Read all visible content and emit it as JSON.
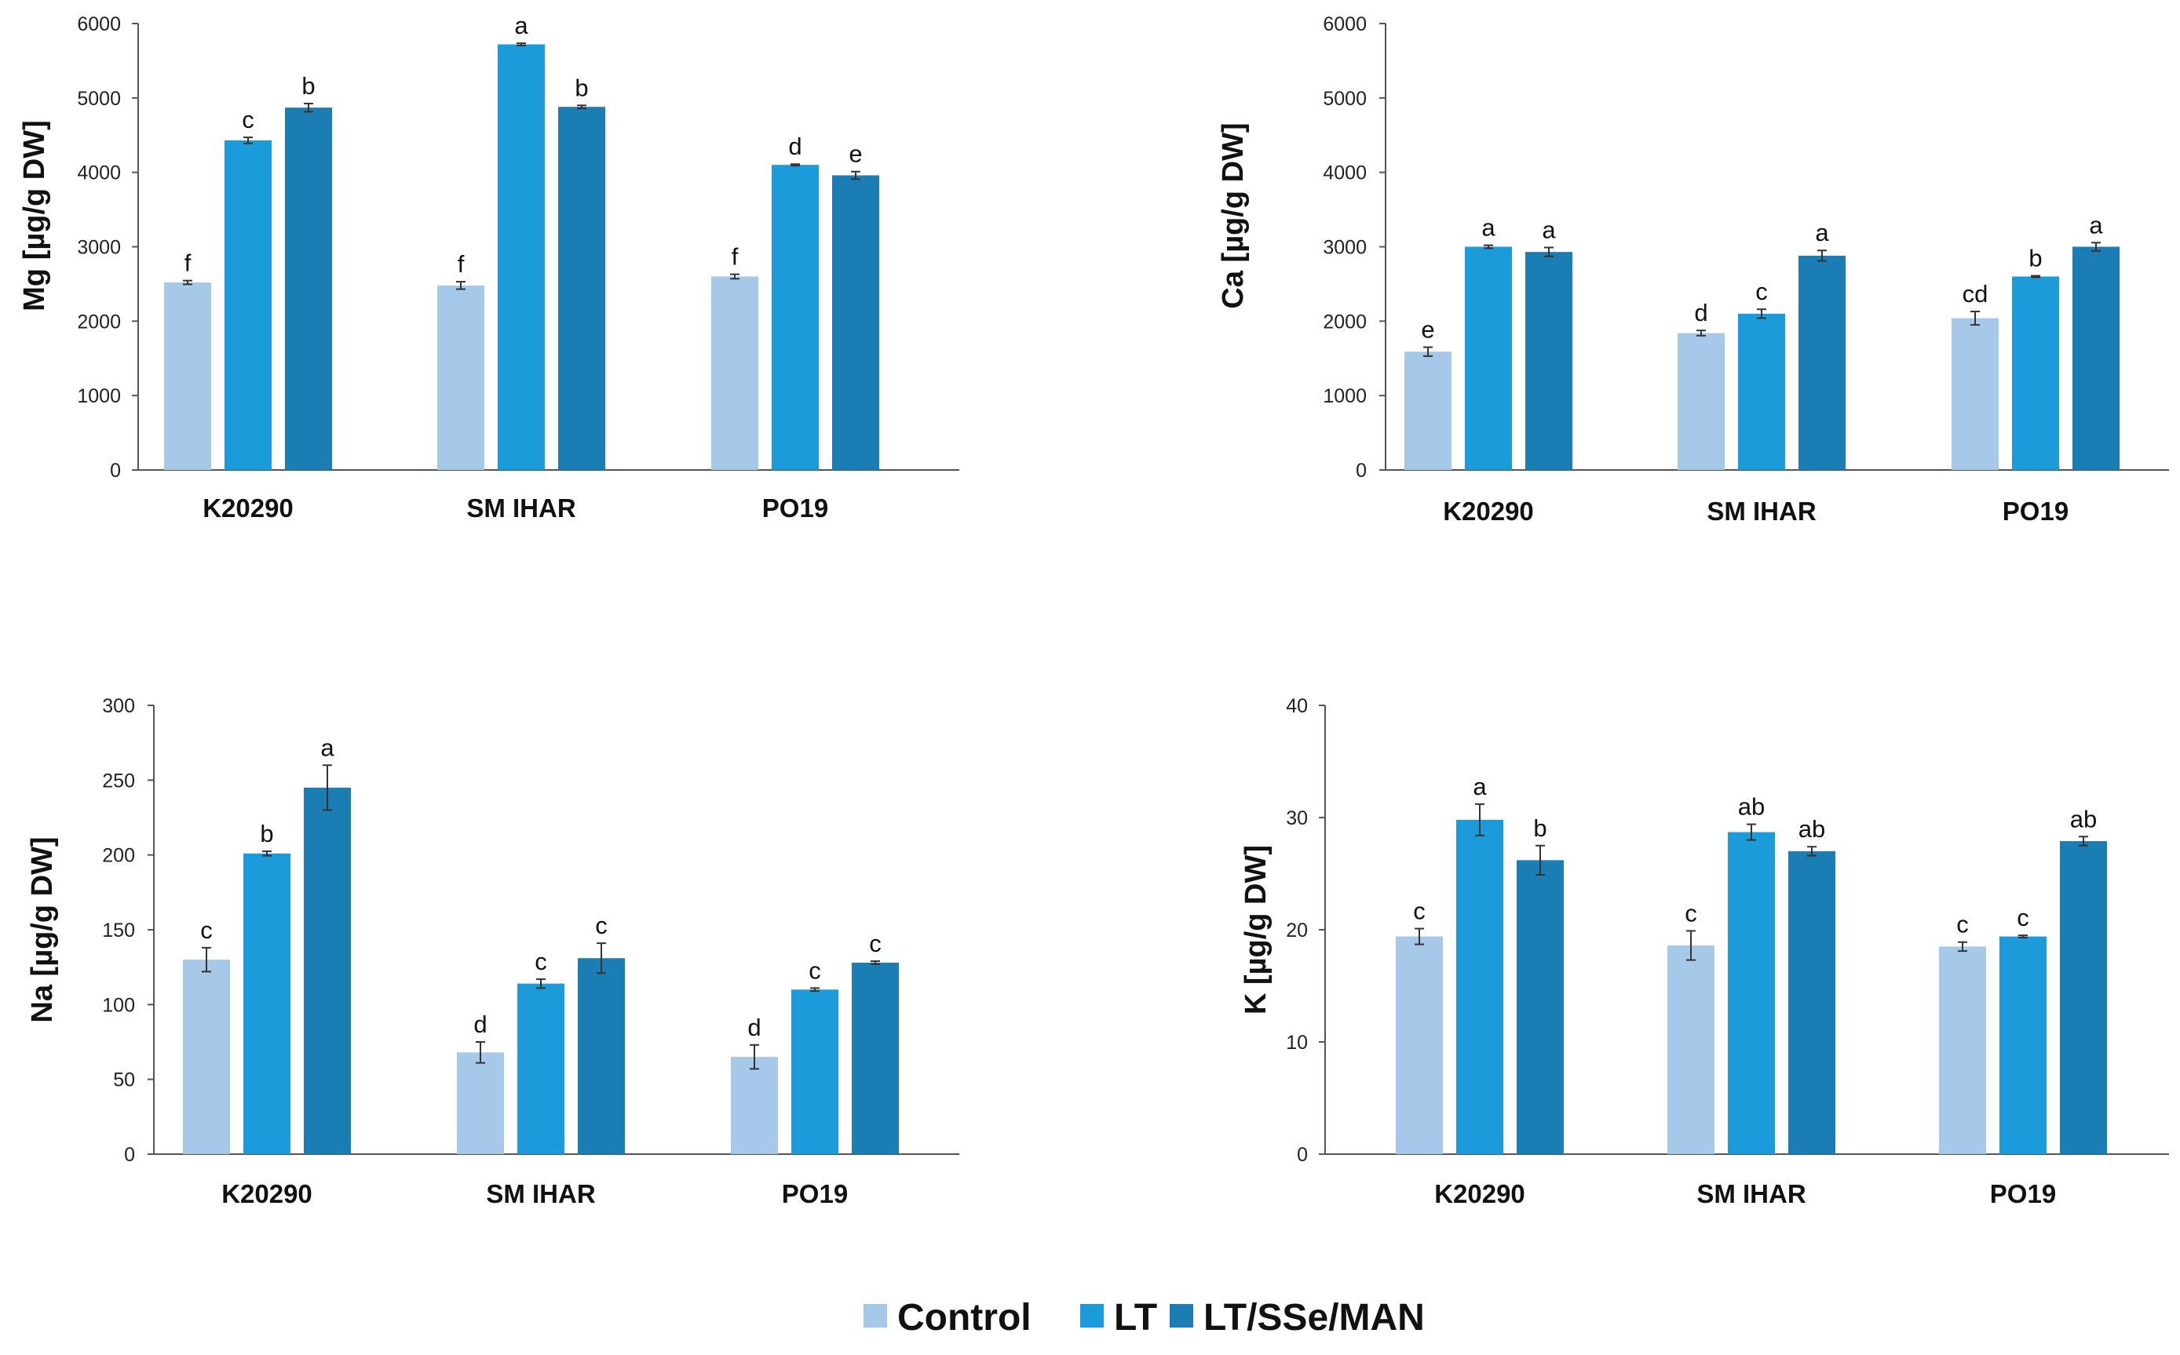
{
  "colors": {
    "Control": "#a6c8e9",
    "LT": "#1b9bd9",
    "LT/SSe/MAN": "#1a7db4",
    "axis": "#555555",
    "error": "#333333"
  },
  "legend": {
    "items": [
      "Control",
      "LT",
      "LT/SSe/MAN"
    ],
    "placement": "bottom-center"
  },
  "chart_data": [
    {
      "type": "bar",
      "ylabel": "Mg [µg/g DW]",
      "categories": [
        "K20290",
        "SM IHAR",
        "PO19"
      ],
      "ylim": [
        0,
        6000
      ],
      "yticks": [
        0,
        1000,
        2000,
        3000,
        4000,
        5000,
        6000
      ],
      "tick_labels": [
        "0",
        "1000",
        "2000",
        "3000",
        "4000",
        "5000",
        "6000"
      ],
      "series": [
        {
          "name": "Control",
          "values": [
            2520,
            2480,
            2600
          ],
          "errors": [
            25,
            50,
            30
          ],
          "letters": [
            "f",
            "f",
            "f"
          ]
        },
        {
          "name": "LT",
          "values": [
            4430,
            5720,
            4100
          ],
          "errors": [
            40,
            15,
            10
          ],
          "letters": [
            "c",
            "a",
            "d"
          ]
        },
        {
          "name": "LT/SSe/MAN",
          "values": [
            4870,
            4880,
            3960
          ],
          "errors": [
            55,
            20,
            50
          ],
          "letters": [
            "b",
            "b",
            "e"
          ]
        }
      ]
    },
    {
      "type": "bar",
      "ylabel": "Ca [µg/g DW]",
      "categories": [
        "K20290",
        "SM IHAR",
        "PO19"
      ],
      "ylim": [
        0,
        6000
      ],
      "yticks": [
        0,
        1000,
        2000,
        3000,
        4000,
        5000,
        6000
      ],
      "tick_labels": [
        "0",
        "1000",
        "2000",
        "3000",
        "4000",
        "5000",
        "6000"
      ],
      "series": [
        {
          "name": "Control",
          "values": [
            1590,
            1840,
            2040
          ],
          "errors": [
            60,
            35,
            90
          ],
          "letters": [
            "e",
            "d",
            "cd"
          ]
        },
        {
          "name": "LT",
          "values": [
            3000,
            2100,
            2600
          ],
          "errors": [
            20,
            60,
            10
          ],
          "letters": [
            "a",
            "c",
            "b"
          ]
        },
        {
          "name": "LT/SSe/MAN",
          "values": [
            2930,
            2880,
            3000
          ],
          "errors": [
            60,
            70,
            55
          ],
          "letters": [
            "a",
            "a",
            "a"
          ]
        }
      ]
    },
    {
      "type": "bar",
      "ylabel": "Na [µg/g DW]",
      "categories": [
        "K20290",
        "SM IHAR",
        "PO19"
      ],
      "ylim": [
        0,
        300
      ],
      "yticks": [
        0,
        50,
        100,
        150,
        200,
        250,
        300
      ],
      "tick_labels": [
        "0",
        "50",
        "100",
        "150",
        "200",
        "250",
        "300"
      ],
      "series": [
        {
          "name": "Control",
          "values": [
            130,
            68,
            65
          ],
          "errors": [
            8,
            7,
            8
          ],
          "letters": [
            "c",
            "d",
            "d"
          ]
        },
        {
          "name": "LT",
          "values": [
            201,
            114,
            110
          ],
          "errors": [
            1.5,
            3,
            1
          ],
          "letters": [
            "b",
            "c",
            "c"
          ]
        },
        {
          "name": "LT/SSe/MAN",
          "values": [
            245,
            131,
            128
          ],
          "errors": [
            15,
            10,
            1
          ],
          "letters": [
            "a",
            "c",
            "c"
          ]
        }
      ]
    },
    {
      "type": "bar",
      "ylabel": "K [µg/g DW]",
      "categories": [
        "K20290",
        "SM IHAR",
        "PO19"
      ],
      "ylim": [
        0,
        40
      ],
      "yticks": [
        0,
        10,
        20,
        30,
        40
      ],
      "tick_labels": [
        "0",
        "10",
        "20",
        "30",
        "40"
      ],
      "series": [
        {
          "name": "Control",
          "values": [
            19.4,
            18.6,
            18.5
          ],
          "errors": [
            0.7,
            1.3,
            0.4
          ],
          "letters": [
            "c",
            "c",
            "c"
          ]
        },
        {
          "name": "LT",
          "values": [
            29.8,
            28.7,
            19.4
          ],
          "errors": [
            1.4,
            0.7,
            0.1
          ],
          "letters": [
            "a",
            "ab",
            "c"
          ]
        },
        {
          "name": "LT/SSe/MAN",
          "values": [
            26.2,
            27.0,
            27.9
          ],
          "errors": [
            1.3,
            0.4,
            0.4
          ],
          "letters": [
            "b",
            "ab",
            "ab"
          ]
        }
      ]
    }
  ]
}
